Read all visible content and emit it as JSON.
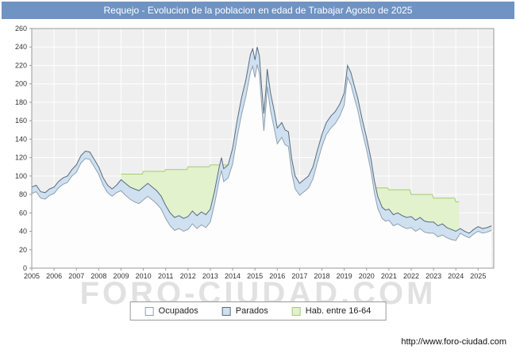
{
  "window": {
    "title": "Requejo - Evolucion de la poblacion en edad de Trabajar Agosto de 2025"
  },
  "colors": {
    "header_bg": "#6f93c3",
    "header_text": "#ffffff"
  },
  "watermark": {
    "text": "FORO-CIUDAD.COM"
  },
  "footer": {
    "url": "http://www.foro-ciudad.com"
  },
  "chart_data": {
    "type": "area",
    "title": "Requejo - Evolucion de la poblacion en edad de Trabajar Agosto de 2025",
    "xlabel": "",
    "ylabel": "",
    "x_axis": {
      "min": 2005,
      "max": 2025.7,
      "ticks": [
        2005,
        2006,
        2007,
        2008,
        2009,
        2010,
        2011,
        2012,
        2013,
        2014,
        2015,
        2016,
        2017,
        2018,
        2019,
        2020,
        2021,
        2022,
        2023,
        2024,
        2025
      ]
    },
    "y_axis": {
      "min": 0,
      "max": 260,
      "ticks": [
        0,
        20,
        40,
        60,
        80,
        100,
        120,
        140,
        160,
        180,
        200,
        220,
        240,
        260
      ]
    },
    "grid": true,
    "legend_position": "bottom",
    "colors": {
      "plot_bg": "#efefef",
      "grid": "#ffffff",
      "axis": "#999999",
      "label": "#333333"
    },
    "legend": [
      {
        "label": "Ocupados",
        "fill": "#fdfdfd",
        "border": "#8fa0ae"
      },
      {
        "label": "Parados",
        "fill": "#cfe0f1",
        "border": "#5a6b7c"
      },
      {
        "label": "Hab. entre 16-64",
        "fill": "#e1f2cd",
        "border": "#a3cc74"
      }
    ],
    "series": [
      {
        "name": "hab_16_64",
        "label": "Hab. entre 16-64",
        "fill": "#e1f2cd",
        "line": "#a3cc74",
        "segments": [
          [
            [
              2009.0,
              102
            ],
            [
              2009.95,
              102
            ],
            [
              2010.0,
              105
            ],
            [
              2010.95,
              105
            ],
            [
              2011.0,
              107
            ],
            [
              2011.95,
              107
            ],
            [
              2012.0,
              110
            ],
            [
              2012.95,
              110
            ],
            [
              2013.0,
              112
            ],
            [
              2013.95,
              112
            ]
          ],
          [
            [
              2020.3,
              87
            ],
            [
              2020.95,
              87
            ],
            [
              2021.0,
              85
            ],
            [
              2021.95,
              85
            ],
            [
              2022.0,
              80
            ],
            [
              2022.95,
              80
            ],
            [
              2023.0,
              76
            ],
            [
              2023.95,
              76
            ],
            [
              2024.0,
              72
            ],
            [
              2024.15,
              72
            ]
          ]
        ]
      },
      {
        "name": "parados_total",
        "label": "Parados",
        "fill": "#cfe0f1",
        "line": "#5a6b7c",
        "segments": [
          [
            [
              2005.0,
              88
            ],
            [
              2005.2,
              90
            ],
            [
              2005.4,
              83
            ],
            [
              2005.6,
              82
            ],
            [
              2005.8,
              86
            ],
            [
              2006.0,
              88
            ],
            [
              2006.2,
              94
            ],
            [
              2006.4,
              98
            ],
            [
              2006.6,
              100
            ],
            [
              2006.8,
              107
            ],
            [
              2007.0,
              112
            ],
            [
              2007.2,
              122
            ],
            [
              2007.4,
              127
            ],
            [
              2007.6,
              126
            ],
            [
              2007.8,
              118
            ],
            [
              2008.0,
              110
            ],
            [
              2008.2,
              98
            ],
            [
              2008.4,
              90
            ],
            [
              2008.6,
              86
            ],
            [
              2008.8,
              90
            ],
            [
              2009.0,
              96
            ],
            [
              2009.2,
              92
            ],
            [
              2009.4,
              88
            ],
            [
              2009.6,
              86
            ],
            [
              2009.8,
              84
            ],
            [
              2010.0,
              88
            ],
            [
              2010.2,
              92
            ],
            [
              2010.4,
              88
            ],
            [
              2010.6,
              84
            ],
            [
              2010.8,
              78
            ],
            [
              2011.0,
              68
            ],
            [
              2011.2,
              60
            ],
            [
              2011.4,
              55
            ],
            [
              2011.6,
              57
            ],
            [
              2011.8,
              54
            ],
            [
              2012.0,
              56
            ],
            [
              2012.2,
              62
            ],
            [
              2012.4,
              57
            ],
            [
              2012.6,
              61
            ],
            [
              2012.8,
              58
            ],
            [
              2013.0,
              64
            ],
            [
              2013.2,
              85
            ],
            [
              2013.4,
              110
            ],
            [
              2013.5,
              120
            ],
            [
              2013.6,
              108
            ],
            [
              2013.8,
              112
            ],
            [
              2014.0,
              130
            ],
            [
              2014.2,
              160
            ],
            [
              2014.4,
              185
            ],
            [
              2014.6,
              205
            ],
            [
              2014.8,
              232
            ],
            [
              2014.9,
              238
            ],
            [
              2015.0,
              226
            ],
            [
              2015.1,
              240
            ],
            [
              2015.2,
              230
            ],
            [
              2015.3,
              196
            ],
            [
              2015.4,
              168
            ],
            [
              2015.5,
              196
            ],
            [
              2015.55,
              216
            ],
            [
              2015.7,
              190
            ],
            [
              2015.85,
              172
            ],
            [
              2016.0,
              152
            ],
            [
              2016.2,
              158
            ],
            [
              2016.35,
              150
            ],
            [
              2016.5,
              148
            ],
            [
              2016.65,
              118
            ],
            [
              2016.8,
              100
            ],
            [
              2017.0,
              92
            ],
            [
              2017.2,
              96
            ],
            [
              2017.4,
              100
            ],
            [
              2017.6,
              110
            ],
            [
              2017.8,
              128
            ],
            [
              2018.0,
              145
            ],
            [
              2018.2,
              158
            ],
            [
              2018.4,
              165
            ],
            [
              2018.6,
              170
            ],
            [
              2018.8,
              178
            ],
            [
              2019.0,
              190
            ],
            [
              2019.15,
              220
            ],
            [
              2019.3,
              212
            ],
            [
              2019.45,
              198
            ],
            [
              2019.6,
              185
            ],
            [
              2019.8,
              162
            ],
            [
              2020.0,
              142
            ],
            [
              2020.2,
              118
            ],
            [
              2020.35,
              95
            ],
            [
              2020.5,
              78
            ],
            [
              2020.7,
              66
            ],
            [
              2020.85,
              63
            ],
            [
              2021.0,
              64
            ],
            [
              2021.2,
              58
            ],
            [
              2021.4,
              60
            ],
            [
              2021.6,
              57
            ],
            [
              2021.8,
              55
            ],
            [
              2022.0,
              56
            ],
            [
              2022.2,
              52
            ],
            [
              2022.4,
              55
            ],
            [
              2022.6,
              51
            ],
            [
              2022.8,
              50
            ],
            [
              2023.0,
              50
            ],
            [
              2023.2,
              46
            ],
            [
              2023.4,
              48
            ],
            [
              2023.6,
              44
            ],
            [
              2023.8,
              42
            ],
            [
              2024.0,
              40
            ],
            [
              2024.2,
              43
            ],
            [
              2024.4,
              40
            ],
            [
              2024.6,
              38
            ],
            [
              2024.8,
              42
            ],
            [
              2025.0,
              45
            ],
            [
              2025.2,
              43
            ],
            [
              2025.4,
              44
            ],
            [
              2025.6,
              46
            ]
          ]
        ]
      },
      {
        "name": "ocupados",
        "label": "Ocupados",
        "fill": "#fdfdfd",
        "line": "#8fa0ae",
        "segments": [
          [
            [
              2005.0,
              81
            ],
            [
              2005.2,
              83
            ],
            [
              2005.4,
              76
            ],
            [
              2005.6,
              75
            ],
            [
              2005.8,
              79
            ],
            [
              2006.0,
              81
            ],
            [
              2006.2,
              87
            ],
            [
              2006.4,
              91
            ],
            [
              2006.6,
              93
            ],
            [
              2006.8,
              100
            ],
            [
              2007.0,
              104
            ],
            [
              2007.2,
              114
            ],
            [
              2007.4,
              119
            ],
            [
              2007.6,
              118
            ],
            [
              2007.8,
              110
            ],
            [
              2008.0,
              102
            ],
            [
              2008.2,
              90
            ],
            [
              2008.4,
              82
            ],
            [
              2008.6,
              78
            ],
            [
              2008.8,
              82
            ],
            [
              2009.0,
              84
            ],
            [
              2009.2,
              79
            ],
            [
              2009.4,
              75
            ],
            [
              2009.6,
              72
            ],
            [
              2009.8,
              70
            ],
            [
              2010.0,
              74
            ],
            [
              2010.2,
              78
            ],
            [
              2010.4,
              74
            ],
            [
              2010.6,
              70
            ],
            [
              2010.8,
              64
            ],
            [
              2011.0,
              54
            ],
            [
              2011.2,
              46
            ],
            [
              2011.4,
              41
            ],
            [
              2011.6,
              43
            ],
            [
              2011.8,
              40
            ],
            [
              2012.0,
              42
            ],
            [
              2012.2,
              48
            ],
            [
              2012.4,
              43
            ],
            [
              2012.6,
              47
            ],
            [
              2012.8,
              44
            ],
            [
              2013.0,
              50
            ],
            [
              2013.2,
              71
            ],
            [
              2013.4,
              96
            ],
            [
              2013.5,
              106
            ],
            [
              2013.6,
              94
            ],
            [
              2013.8,
              98
            ],
            [
              2014.0,
              113
            ],
            [
              2014.2,
              142
            ],
            [
              2014.4,
              167
            ],
            [
              2014.6,
              187
            ],
            [
              2014.8,
              213
            ],
            [
              2014.9,
              219
            ],
            [
              2015.0,
              207
            ],
            [
              2015.1,
              221
            ],
            [
              2015.2,
              211
            ],
            [
              2015.3,
              177
            ],
            [
              2015.4,
              149
            ],
            [
              2015.5,
              177
            ],
            [
              2015.55,
              197
            ],
            [
              2015.7,
              171
            ],
            [
              2015.85,
              153
            ],
            [
              2016.0,
              135
            ],
            [
              2016.2,
              142
            ],
            [
              2016.35,
              134
            ],
            [
              2016.5,
              132
            ],
            [
              2016.65,
              103
            ],
            [
              2016.8,
              86
            ],
            [
              2017.0,
              79
            ],
            [
              2017.2,
              83
            ],
            [
              2017.4,
              87
            ],
            [
              2017.6,
              97
            ],
            [
              2017.8,
              115
            ],
            [
              2018.0,
              132
            ],
            [
              2018.2,
              145
            ],
            [
              2018.4,
              152
            ],
            [
              2018.6,
              157
            ],
            [
              2018.8,
              165
            ],
            [
              2019.0,
              177
            ],
            [
              2019.15,
              207
            ],
            [
              2019.3,
              199
            ],
            [
              2019.45,
              185
            ],
            [
              2019.6,
              172
            ],
            [
              2019.8,
              149
            ],
            [
              2020.0,
              129
            ],
            [
              2020.2,
              105
            ],
            [
              2020.35,
              82
            ],
            [
              2020.5,
              65
            ],
            [
              2020.7,
              54
            ],
            [
              2020.85,
              51
            ],
            [
              2021.0,
              52
            ],
            [
              2021.2,
              46
            ],
            [
              2021.4,
              48
            ],
            [
              2021.6,
              45
            ],
            [
              2021.8,
              43
            ],
            [
              2022.0,
              44
            ],
            [
              2022.2,
              40
            ],
            [
              2022.4,
              43
            ],
            [
              2022.6,
              39
            ],
            [
              2022.8,
              38
            ],
            [
              2023.0,
              38
            ],
            [
              2023.2,
              34
            ],
            [
              2023.4,
              36
            ],
            [
              2023.6,
              33
            ],
            [
              2023.8,
              31
            ],
            [
              2024.0,
              30
            ],
            [
              2024.2,
              38
            ],
            [
              2024.4,
              35
            ],
            [
              2024.6,
              33
            ],
            [
              2024.8,
              37
            ],
            [
              2025.0,
              40
            ],
            [
              2025.2,
              38
            ],
            [
              2025.4,
              39
            ],
            [
              2025.6,
              41
            ]
          ]
        ]
      }
    ]
  }
}
